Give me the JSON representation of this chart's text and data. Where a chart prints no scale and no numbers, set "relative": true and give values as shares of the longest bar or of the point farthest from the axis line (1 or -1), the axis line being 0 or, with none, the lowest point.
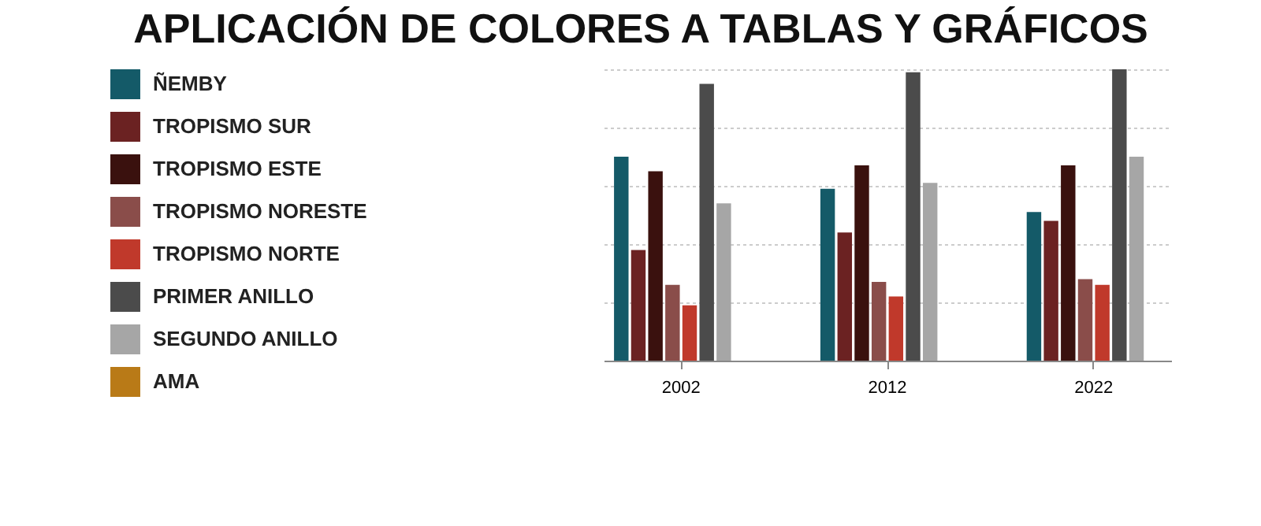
{
  "chart_data": {
    "type": "bar",
    "title": "APLICACIÓN DE COLORES A TABLAS Y GRÁFICOS",
    "relative": true,
    "grid": "y",
    "legend": "left",
    "categories": [
      "2002",
      "2012",
      "2022"
    ],
    "series": [
      {
        "name": "ÑEMBY",
        "color": "#145a68",
        "values": [
          0.7,
          0.59,
          0.51
        ]
      },
      {
        "name": "TROPISMO SUR",
        "color": "#6b2222",
        "values": [
          0.38,
          0.44,
          0.48
        ]
      },
      {
        "name": "TROPISMO ESTE",
        "color": "#3a110e",
        "values": [
          0.65,
          0.67,
          0.67
        ]
      },
      {
        "name": "TROPISMO NORESTE",
        "color": "#8a4d4a",
        "values": [
          0.26,
          0.27,
          0.28
        ]
      },
      {
        "name": "TROPISMO NORTE",
        "color": "#c0392b",
        "values": [
          0.19,
          0.22,
          0.26
        ]
      },
      {
        "name": "PRIMER ANILLO",
        "color": "#4b4b4b",
        "values": [
          0.95,
          0.99,
          1.0
        ]
      },
      {
        "name": "SEGUNDO ANILLO",
        "color": "#a6a6a6",
        "values": [
          0.54,
          0.61,
          0.7
        ]
      },
      {
        "name": "AMA",
        "color": "#b97a17",
        "values": [
          null,
          null,
          null
        ]
      }
    ]
  }
}
